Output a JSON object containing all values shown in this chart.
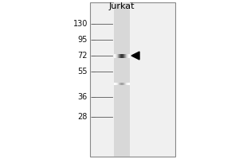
{
  "title": "Jurkat",
  "mw_markers": [
    130,
    95,
    72,
    55,
    36,
    28
  ],
  "band1_mw": 72,
  "band1_intensity": 0.88,
  "band2_mw": 43,
  "band2_intensity": 0.5,
  "arrow_mw": 72,
  "bg_color": "#ffffff",
  "outer_border_color": "#888888",
  "gel_area_bg": "#e8e8e8",
  "lane_bg": "#d0d0d0",
  "band_color": "#111111",
  "marker_color": "#111111",
  "title_fontsize": 8,
  "marker_fontsize": 7,
  "fig_width": 3.0,
  "fig_height": 2.0,
  "dpi": 100
}
